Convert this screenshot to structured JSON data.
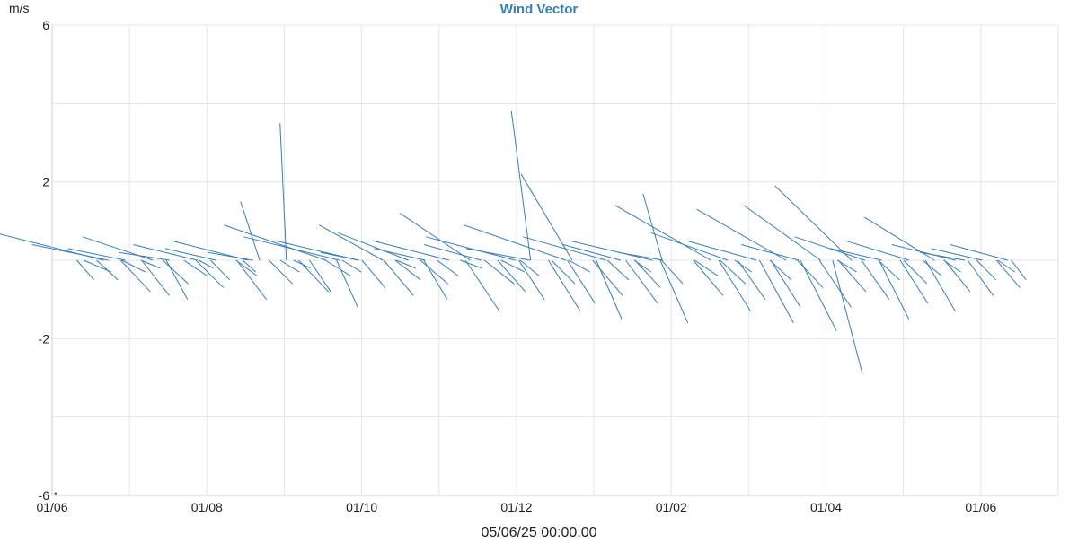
{
  "chart_data": {
    "type": "vector",
    "title": "Wind Vector",
    "ylabel": "m/s",
    "xlabel": "05/06/25 00:00:00",
    "ylim": [
      -6,
      6
    ],
    "yticks": [
      -6,
      -2,
      2,
      6
    ],
    "ytick_labels": [
      "-6",
      "-2",
      "2",
      "6"
    ],
    "xticks": [
      {
        "label": "01/06",
        "x": 0
      },
      {
        "label": "01/08",
        "x": 2
      },
      {
        "label": "01/10",
        "x": 4
      },
      {
        "label": "01/12",
        "x": 6
      },
      {
        "label": "01/02",
        "x": 8
      },
      {
        "label": "01/04",
        "x": 10
      },
      {
        "label": "01/06",
        "x": 12
      }
    ],
    "xlim": [
      0,
      13
    ],
    "grid": true,
    "colors": {
      "vector": "#3a7db5",
      "title": "#3a7db5",
      "grid": "#e6e6e6",
      "axis": "#cccccc",
      "text": "#222222"
    },
    "vectors_note_marker": "*",
    "vectors": [
      [
        0.05,
        -0.3,
        1.3
      ],
      [
        0.1,
        -0.5,
        0.8
      ],
      [
        0.2,
        0.7,
        1.7
      ],
      [
        0.3,
        -0.5,
        1.0
      ],
      [
        0.4,
        0.4,
        1.2
      ],
      [
        0.5,
        -0.8,
        1.4
      ],
      [
        0.6,
        -0.3,
        1.1
      ],
      [
        0.7,
        0.3,
        0.9
      ],
      [
        0.8,
        -0.9,
        1.3
      ],
      [
        0.9,
        -0.2,
        0.9
      ],
      [
        1.0,
        0.6,
        1.1
      ],
      [
        1.1,
        -0.6,
        1.2
      ],
      [
        1.2,
        -1.0,
        1.0
      ],
      [
        1.3,
        0.2,
        0.8
      ],
      [
        1.4,
        -0.4,
        1.1
      ],
      [
        1.5,
        -0.7,
        1.3
      ],
      [
        1.6,
        0.4,
        1.0
      ],
      [
        1.7,
        -0.2,
        0.7
      ],
      [
        1.8,
        -0.5,
        0.9
      ],
      [
        1.9,
        0.3,
        0.8
      ],
      [
        2.0,
        -1.0,
        1.4
      ],
      [
        2.1,
        -0.4,
        1.0
      ],
      [
        2.2,
        0.5,
        1.2
      ],
      [
        2.3,
        -0.3,
        0.6
      ],
      [
        2.4,
        0.2,
        0.7
      ],
      [
        2.5,
        -0.6,
        1.1
      ],
      [
        2.6,
        1.5,
        0.3
      ],
      [
        2.7,
        -0.3,
        0.9
      ],
      [
        2.8,
        -0.8,
        1.4
      ],
      [
        2.9,
        -0.2,
        0.8
      ],
      [
        3.0,
        3.5,
        0.1
      ],
      [
        3.05,
        -0.8,
        1.0
      ],
      [
        3.1,
        0.9,
        1.6
      ],
      [
        3.2,
        -0.4,
        1.2
      ],
      [
        3.3,
        0.6,
        1.5
      ],
      [
        3.4,
        -1.2,
        1.0
      ],
      [
        3.5,
        -0.3,
        0.9
      ],
      [
        3.6,
        0.5,
        1.3
      ],
      [
        3.7,
        -0.7,
        1.1
      ],
      [
        3.8,
        0.2,
        0.6
      ],
      [
        3.9,
        -0.9,
        1.4
      ],
      [
        4.0,
        0.9,
        1.0
      ],
      [
        4.1,
        -0.5,
        1.2
      ],
      [
        4.2,
        -0.2,
        0.9
      ],
      [
        4.3,
        0.7,
        1.1
      ],
      [
        4.4,
        -0.6,
        1.3
      ],
      [
        4.5,
        -1.0,
        1.1
      ],
      [
        4.6,
        0.3,
        0.8
      ],
      [
        4.7,
        -0.4,
        1.0
      ],
      [
        4.8,
        0.5,
        1.2
      ],
      [
        4.9,
        -1.3,
        1.6
      ],
      [
        5.0,
        -0.2,
        1.0
      ],
      [
        5.1,
        1.2,
        1.1
      ],
      [
        5.2,
        -0.6,
        1.4
      ],
      [
        5.3,
        0.4,
        0.9
      ],
      [
        5.4,
        -0.8,
        1.3
      ],
      [
        5.5,
        -0.3,
        1.1
      ],
      [
        5.6,
        0.6,
        1.4
      ],
      [
        5.7,
        -1.0,
        1.2
      ],
      [
        5.8,
        -0.4,
        0.9
      ],
      [
        5.9,
        0.3,
        1.0
      ],
      [
        6.0,
        -1.3,
        1.5
      ],
      [
        6.1,
        3.8,
        0.3
      ],
      [
        6.15,
        -0.6,
        1.1
      ],
      [
        6.2,
        0.9,
        1.6
      ],
      [
        6.3,
        -1.1,
        1.3
      ],
      [
        6.4,
        -0.3,
        1.0
      ],
      [
        6.5,
        2.2,
        0.8
      ],
      [
        6.6,
        -0.9,
        1.4
      ],
      [
        6.7,
        -1.5,
        1.2
      ],
      [
        6.8,
        0.6,
        1.3
      ],
      [
        6.9,
        -0.5,
        1.0
      ],
      [
        7.0,
        -1.1,
        1.5
      ],
      [
        7.1,
        0.4,
        0.9
      ],
      [
        7.2,
        -0.7,
        1.2
      ],
      [
        7.3,
        -0.3,
        0.8
      ],
      [
        7.4,
        0.5,
        1.3
      ],
      [
        7.5,
        -1.6,
        1.3
      ],
      [
        7.6,
        -0.6,
        1.0
      ],
      [
        7.7,
        0.2,
        0.7
      ],
      [
        7.8,
        1.7,
        0.3
      ],
      [
        7.9,
        -0.9,
        1.4
      ],
      [
        8.0,
        -0.4,
        1.1
      ],
      [
        8.1,
        1.4,
        1.5
      ],
      [
        8.2,
        -1.3,
        1.5
      ],
      [
        8.3,
        -0.6,
        1.2
      ],
      [
        8.4,
        0.7,
        1.2
      ],
      [
        8.5,
        -1.0,
        1.3
      ],
      [
        8.6,
        -0.3,
        0.8
      ],
      [
        8.7,
        -1.6,
        1.6
      ],
      [
        8.8,
        0.5,
        1.1
      ],
      [
        8.9,
        -1.2,
        1.4
      ],
      [
        9.0,
        -0.5,
        1.0
      ],
      [
        9.1,
        1.3,
        1.4
      ],
      [
        9.2,
        -1.8,
        1.7
      ],
      [
        9.3,
        -0.7,
        1.2
      ],
      [
        9.4,
        0.4,
        0.9
      ],
      [
        9.5,
        -1.2,
        1.5
      ],
      [
        9.6,
        1.4,
        1.2
      ],
      [
        9.7,
        -2.9,
        1.4
      ],
      [
        9.8,
        -0.8,
        1.3
      ],
      [
        9.9,
        -0.3,
        0.9
      ],
      [
        10.0,
        1.9,
        1.2
      ],
      [
        10.1,
        -1.0,
        1.3
      ],
      [
        10.2,
        0.6,
        1.1
      ],
      [
        10.3,
        -1.5,
        1.4
      ],
      [
        10.4,
        -0.5,
        1.0
      ],
      [
        10.5,
        0.3,
        0.8
      ],
      [
        10.6,
        -1.1,
        1.3
      ],
      [
        10.7,
        -0.6,
        1.1
      ],
      [
        10.8,
        0.5,
        1.0
      ],
      [
        10.9,
        -1.3,
        1.4
      ],
      [
        11.0,
        -0.4,
        0.9
      ],
      [
        11.1,
        1.1,
        1.1
      ],
      [
        11.2,
        -0.8,
        1.2
      ],
      [
        11.3,
        -0.3,
        0.8
      ],
      [
        11.4,
        0.4,
        1.0
      ],
      [
        11.5,
        -0.9,
        1.2
      ],
      [
        11.6,
        0.2,
        0.7
      ],
      [
        11.7,
        -0.5,
        0.9
      ],
      [
        11.8,
        0.3,
        0.8
      ],
      [
        11.9,
        -0.7,
        1.1
      ],
      [
        12.0,
        -0.3,
        0.8
      ],
      [
        12.1,
        0.4,
        0.9
      ],
      [
        12.2,
        -0.5,
        0.7
      ]
    ]
  }
}
